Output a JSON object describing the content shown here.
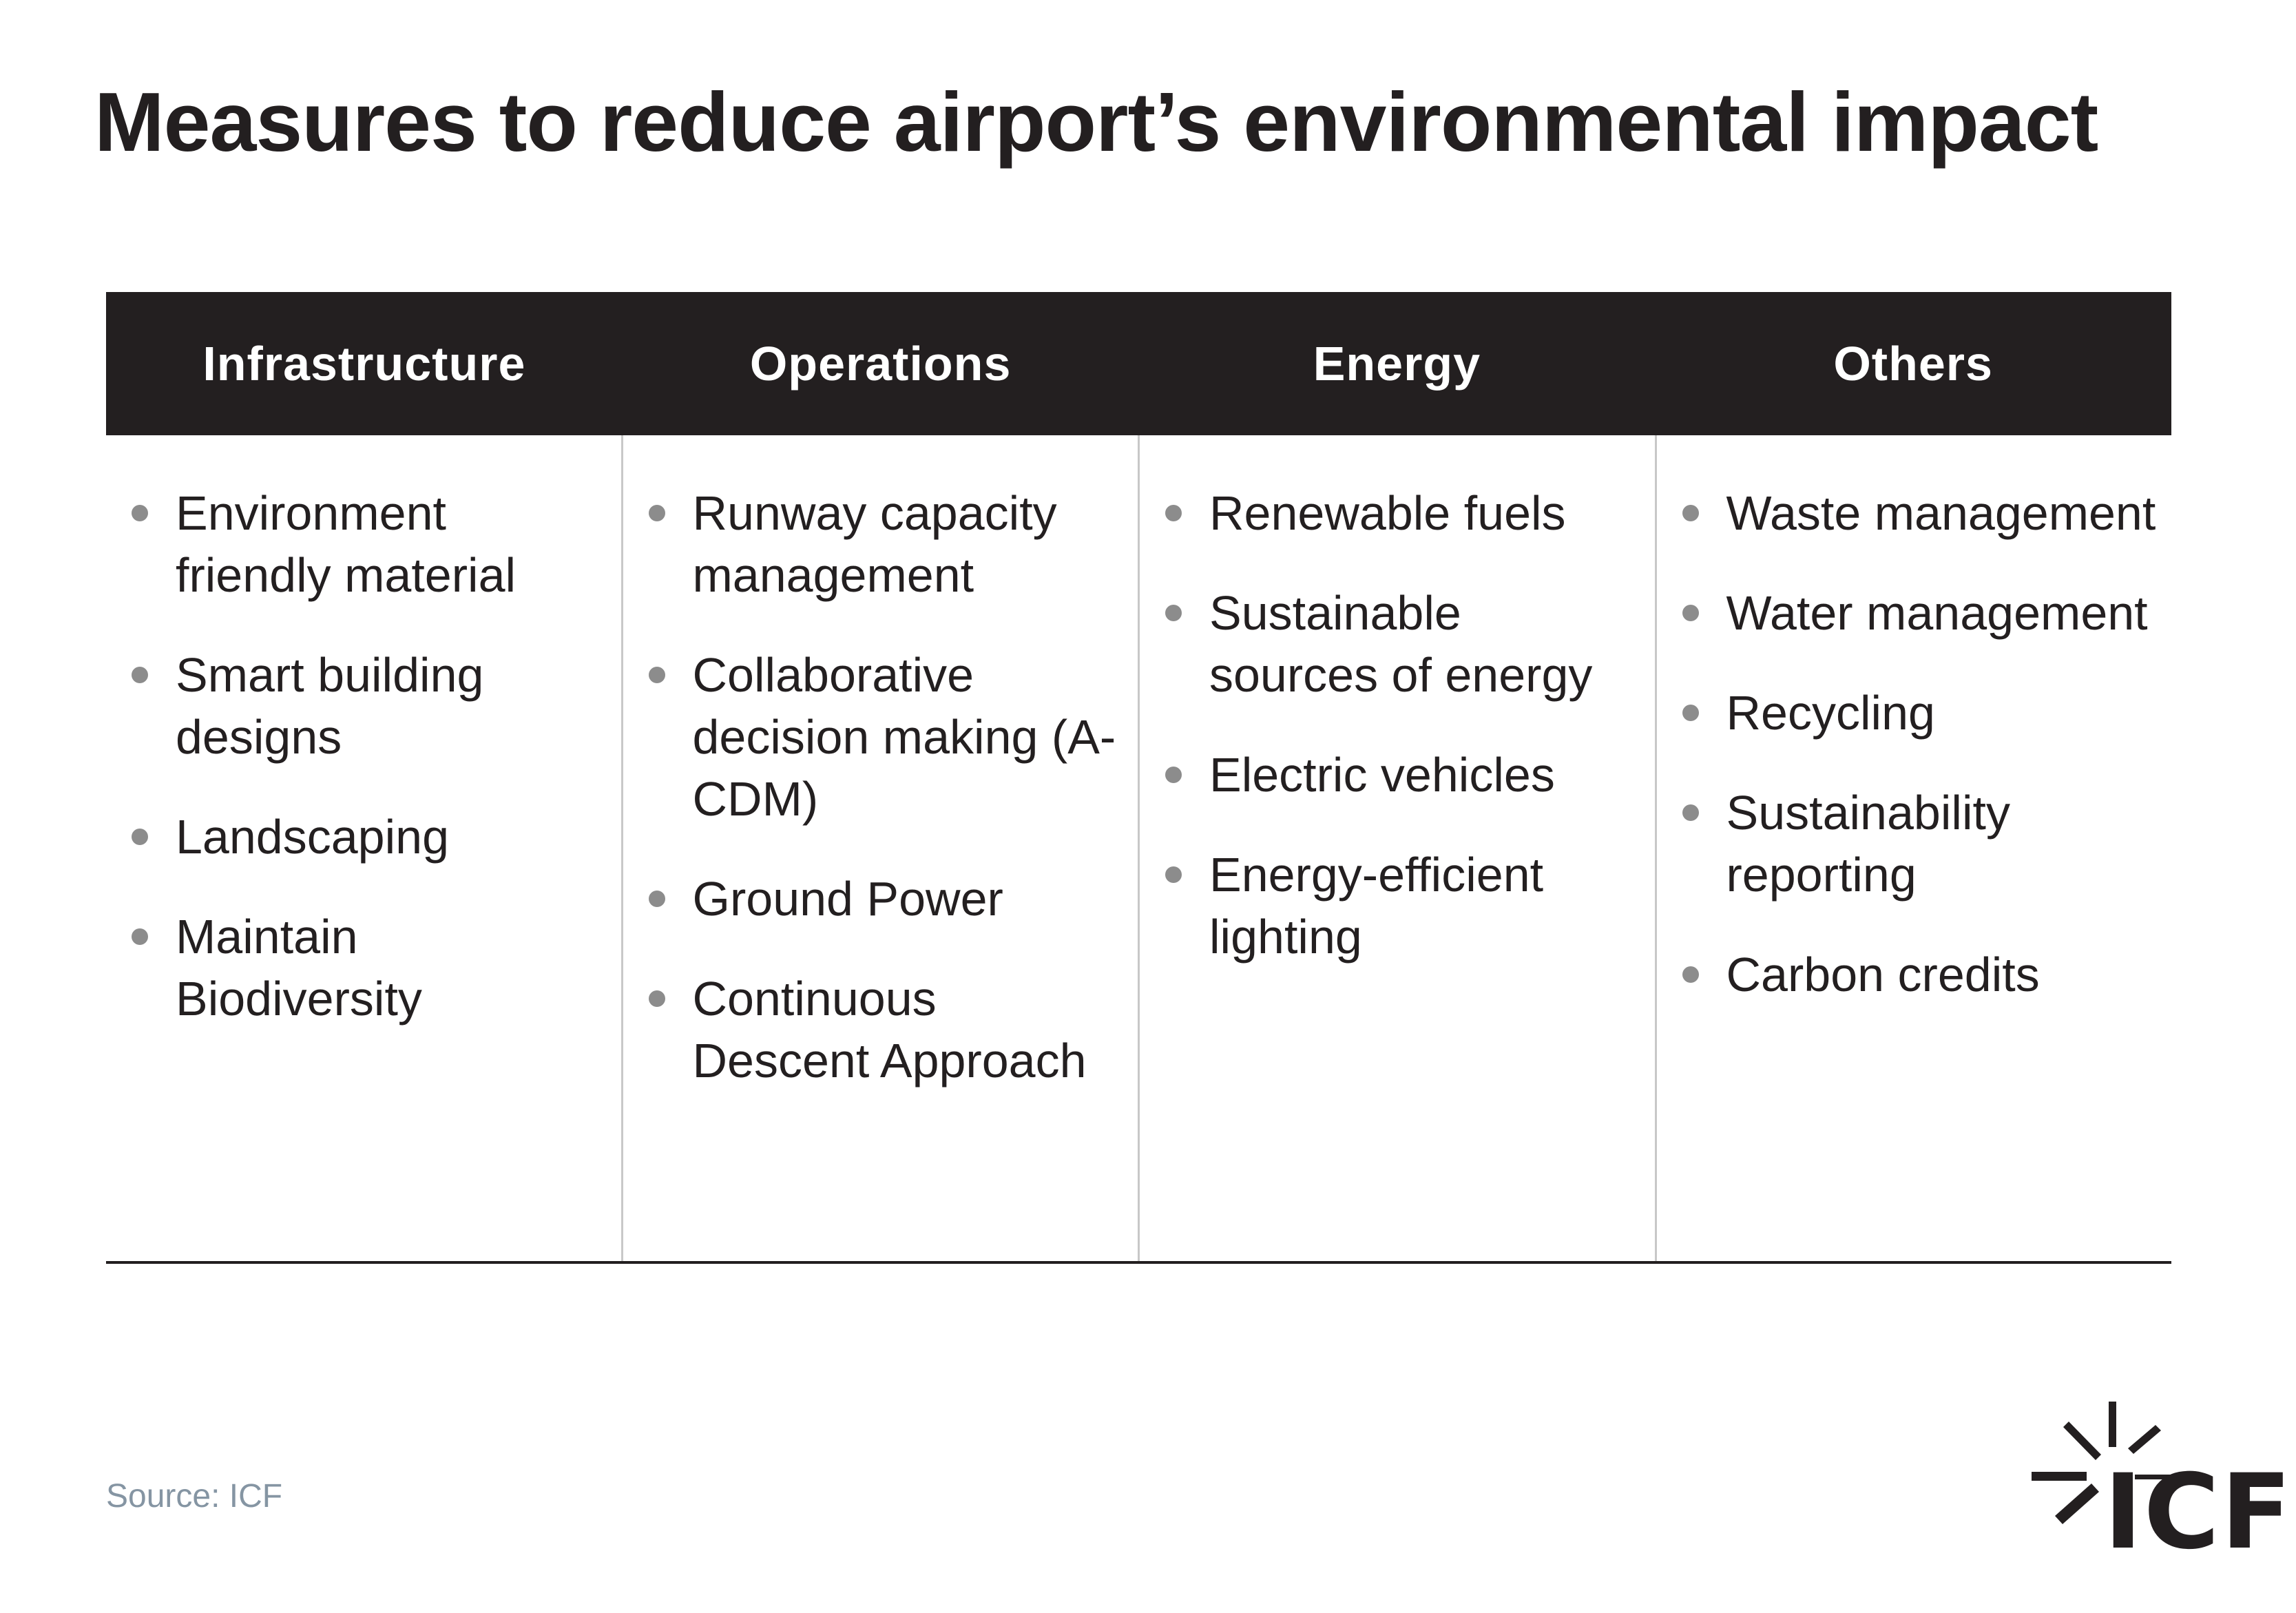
{
  "title": "Measures to reduce airport’s environmental impact",
  "columns": [
    {
      "header": "Infrastructure",
      "items": [
        "Environment friendly material",
        "Smart building designs",
        "Landscaping",
        "Maintain Biodiversity"
      ]
    },
    {
      "header": "Operations",
      "items": [
        "Runway capacity management",
        "Collaborative decision making (A-CDM)",
        "Ground Power",
        "Continuous Descent Approach"
      ]
    },
    {
      "header": "Energy",
      "items": [
        "Renewable fuels",
        "Sustainable sources of energy",
        "Electric vehicles",
        "Energy-efficient lighting"
      ]
    },
    {
      "header": "Others",
      "items": [
        "Waste management",
        "Water management",
        "Recycling",
        "Sustainability reporting",
        "Carbon credits"
      ]
    }
  ],
  "source": "Source: ICF",
  "logo": {
    "text": "ICF",
    "icon": "icf-starburst-logo-icon"
  },
  "colors": {
    "text": "#231f20",
    "header_bg": "#231f20",
    "header_text": "#ffffff",
    "bullet": "#8c8c8c",
    "divider": "#c8c8c8",
    "source_text": "#8595a3"
  }
}
